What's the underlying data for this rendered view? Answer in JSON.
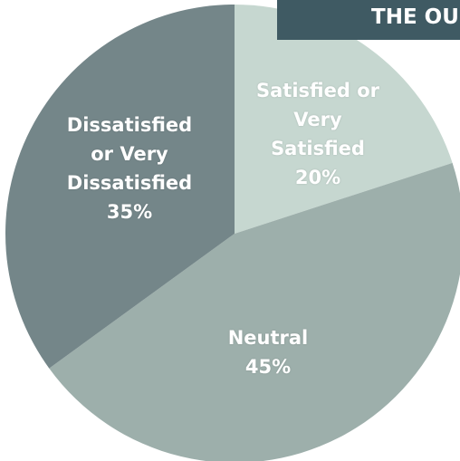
{
  "chart_data": {
    "type": "pie",
    "title": "THE OU",
    "categories": [
      "Satisfied or\nVery\nSatisfied",
      "Neutral",
      "Dissatisfied\nor Very\nDissatisfied"
    ],
    "values": [
      20,
      45,
      35
    ],
    "value_labels": [
      "20%",
      "45%",
      "35%"
    ],
    "colors": [
      "#c6d7d0",
      "#9dafab",
      "#748689"
    ]
  }
}
